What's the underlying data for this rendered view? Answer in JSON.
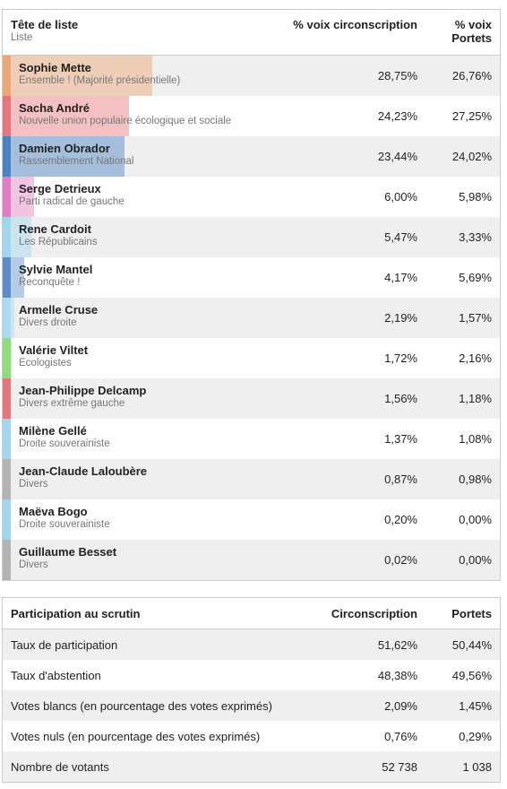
{
  "results": {
    "header": {
      "name": "Tête de liste",
      "sub": "Liste",
      "col1": "% voix circonscription",
      "col2": "% voix Portets"
    },
    "rows": [
      {
        "name": "Sophie Mette",
        "party": "Ensemble ! (Majorité présidentielle)",
        "circ": "28,75%",
        "portets": "26,76%",
        "color": "#eea673"
      },
      {
        "name": "Sacha André",
        "party": "Nouvelle union populaire écologique et sociale",
        "circ": "24,23%",
        "portets": "27,25%",
        "color": "#e7767a"
      },
      {
        "name": "Damien Obrador",
        "party": "Rassemblement National",
        "circ": "23,44%",
        "portets": "24,02%",
        "color": "#4a82c3"
      },
      {
        "name": "Serge Detrieux",
        "party": "Parti radical de gauche",
        "circ": "6,00%",
        "portets": "5,98%",
        "color": "#e27cc4"
      },
      {
        "name": "Rene Cardoit",
        "party": "Les Républicains",
        "circ": "5,47%",
        "portets": "3,33%",
        "color": "#9fd7f0"
      },
      {
        "name": "Sylvie Mantel",
        "party": "Reconquête !",
        "circ": "4,17%",
        "portets": "5,69%",
        "color": "#5a8ecb"
      },
      {
        "name": "Armelle Cruse",
        "party": "Divers droite",
        "circ": "2,19%",
        "portets": "1,57%",
        "color": "#a9dbf3"
      },
      {
        "name": "Valérie Viltet",
        "party": "Ecologistes",
        "circ": "1,72%",
        "portets": "2,16%",
        "color": "#8edf7a"
      },
      {
        "name": "Jean-Philippe Delcamp",
        "party": "Divers extrême gauche",
        "circ": "1,56%",
        "portets": "1,18%",
        "color": "#e7767a"
      },
      {
        "name": "Milène Gellé",
        "party": "Droite souverainiste",
        "circ": "1,37%",
        "portets": "1,08%",
        "color": "#9fd7f0"
      },
      {
        "name": "Jean-Claude Laloubère",
        "party": "Divers",
        "circ": "0,87%",
        "portets": "0,98%",
        "color": "#b3b3b3"
      },
      {
        "name": "Maëva Bogo",
        "party": "Droite souverainiste",
        "circ": "0,20%",
        "portets": "0,00%",
        "color": "#9fd7f0"
      },
      {
        "name": "Guillaume Besset",
        "party": "Divers",
        "circ": "0,02%",
        "portets": "0,00%",
        "color": "#b3b3b3"
      }
    ]
  },
  "participation": {
    "header": {
      "label": "Participation au scrutin",
      "col1": "Circonscription",
      "col2": "Portets"
    },
    "rows": [
      {
        "label": "Taux de participation",
        "circ": "51,62%",
        "portets": "50,44%"
      },
      {
        "label": "Taux d'abstention",
        "circ": "48,38%",
        "portets": "49,56%"
      },
      {
        "label": "Votes blancs (en pourcentage des votes exprimés)",
        "circ": "2,09%",
        "portets": "1,45%"
      },
      {
        "label": "Votes nuls (en pourcentage des votes exprimés)",
        "circ": "0,76%",
        "portets": "0,29%"
      },
      {
        "label": "Nombre de votants",
        "circ": "52 738",
        "portets": "1 038"
      }
    ]
  }
}
